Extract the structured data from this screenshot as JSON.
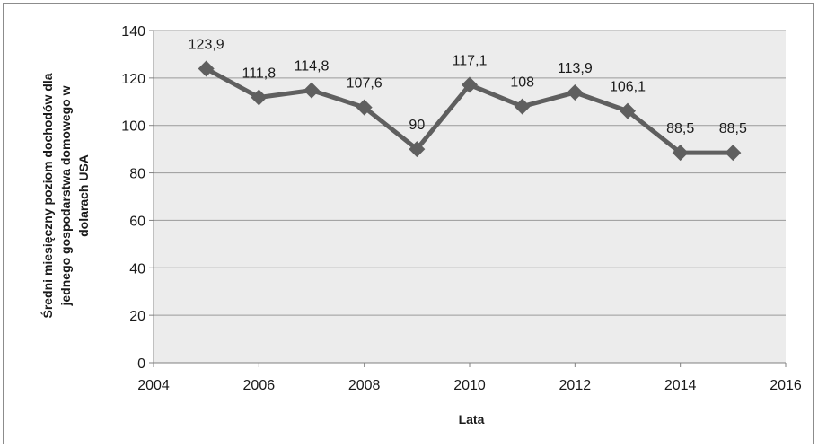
{
  "chart_data": {
    "type": "scatter",
    "title": "",
    "xlabel": "Lata",
    "ylabel_lines": [
      "Średni miesięczny poziom dochodów dla",
      "jednego gospodarstwa domowego w",
      "dolarach USA"
    ],
    "xlim": [
      2004,
      2016
    ],
    "ylim": [
      0,
      140
    ],
    "x_ticks": [
      2004,
      2006,
      2008,
      2010,
      2012,
      2014,
      2016
    ],
    "y_ticks": [
      0,
      20,
      40,
      60,
      80,
      100,
      120,
      140
    ],
    "grid": "horizontal",
    "legend": "none",
    "series": [
      {
        "x": [
          2005,
          2006,
          2007,
          2008,
          2009,
          2010,
          2011,
          2012,
          2013,
          2014,
          2015
        ],
        "y": [
          123.9,
          111.8,
          114.8,
          107.6,
          90,
          117.1,
          108,
          113.9,
          106.1,
          88.5,
          88.5
        ],
        "labels": [
          "123,9",
          "111,8",
          "114,8",
          "107,6",
          "90",
          "117,1",
          "108",
          "113,9",
          "106,1",
          "88,5",
          "88,5"
        ],
        "marker": "diamond",
        "line": true,
        "color": "#5f5f5f"
      }
    ],
    "plot_background": "#ececec",
    "grid_color": "#9a9a9a"
  }
}
